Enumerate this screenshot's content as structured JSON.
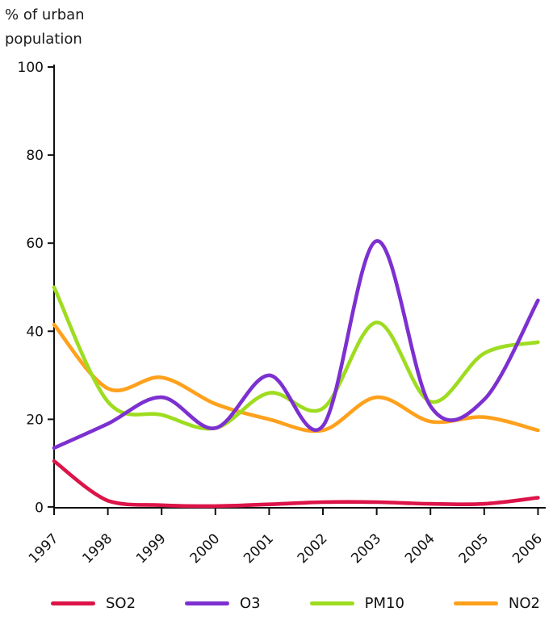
{
  "chart_data": {
    "type": "line",
    "ylabel_lines": [
      "% of urban",
      "population"
    ],
    "categories": [
      "1997",
      "1998",
      "1999",
      "2000",
      "2001",
      "2002",
      "2003",
      "2004",
      "2005",
      "2006"
    ],
    "ylim": [
      0,
      100
    ],
    "yticks": [
      0,
      20,
      40,
      60,
      80,
      100
    ],
    "grid": false,
    "legend_position": "bottom",
    "axis_color": "#111111",
    "series": [
      {
        "name": "SO2",
        "color": "#dc1448",
        "values": [
          10.5,
          1.5,
          0.5,
          0.3,
          0.7,
          1.2,
          1.2,
          0.8,
          0.8,
          2.2
        ]
      },
      {
        "name": "O3",
        "color": "#7d30d0",
        "values": [
          13.5,
          19,
          25,
          18,
          30,
          18.5,
          60.5,
          23,
          24.5,
          47
        ]
      },
      {
        "name": "PM10",
        "color": "#9edc20",
        "values": [
          50,
          24,
          21,
          18,
          26,
          22.5,
          42,
          24,
          35,
          37.5
        ]
      },
      {
        "name": "NO2",
        "color": "#ffa11d",
        "values": [
          41.5,
          27,
          29.5,
          23.5,
          20,
          17.5,
          25,
          19.5,
          20.5,
          17.5
        ]
      }
    ]
  }
}
